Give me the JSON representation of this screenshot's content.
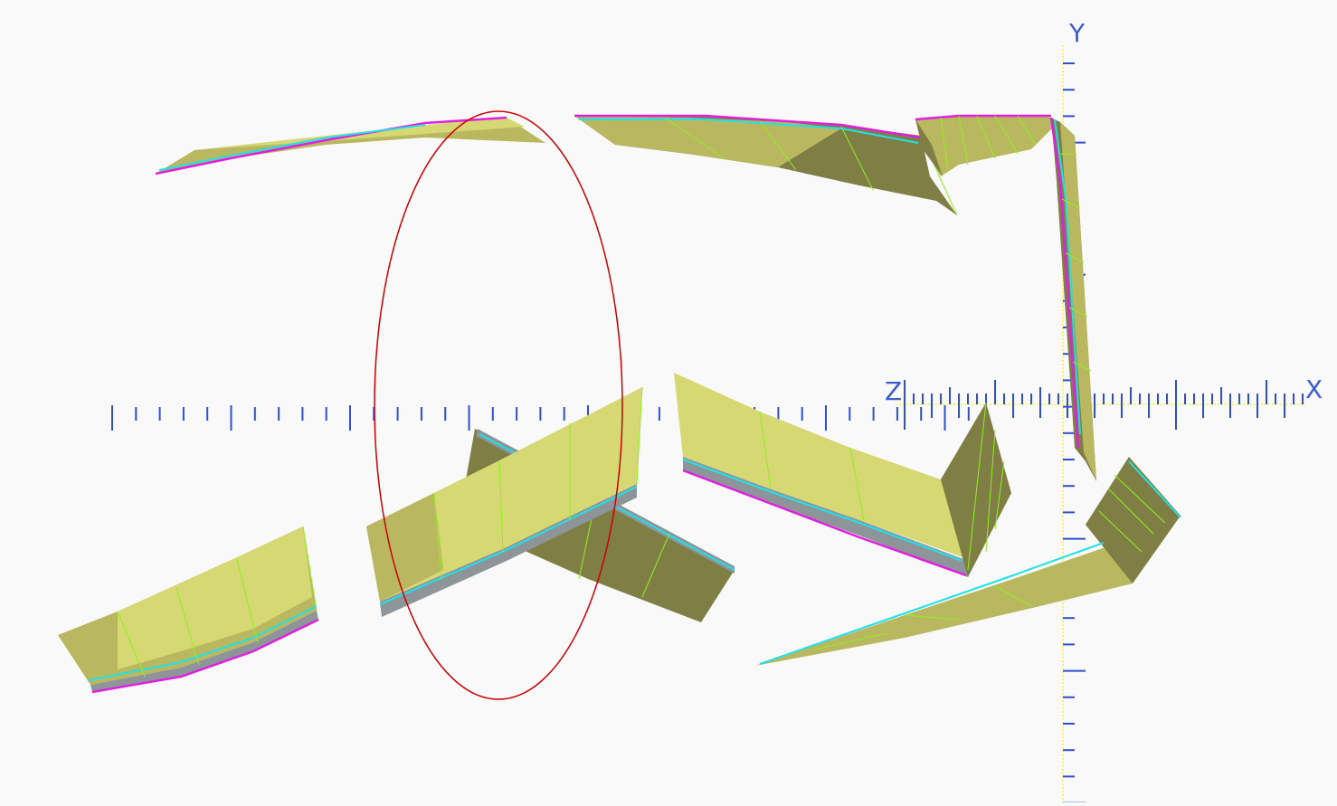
{
  "viewport": {
    "background": "#f9f9f9",
    "axes": {
      "x_label": "X",
      "y_label": "Y",
      "z_label": "Z",
      "axis_color": "#f4f46a",
      "tick_color": "#2f4fd0"
    },
    "selection": {
      "shape": "ellipse",
      "color": "#cc0000"
    },
    "model": {
      "face_colors": [
        "#d6d873",
        "#b9b860",
        "#7f7f45"
      ],
      "seam_color": "#8ff020",
      "rim_colors": [
        "#22e0e8",
        "#e020e0"
      ]
    }
  }
}
